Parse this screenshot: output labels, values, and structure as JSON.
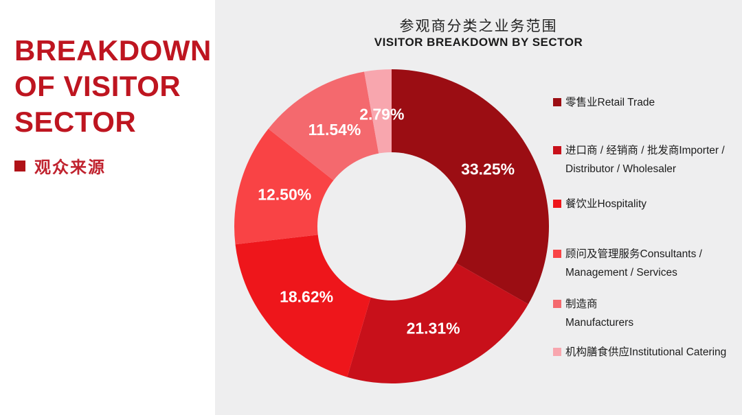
{
  "left_panel": {
    "title_lines": [
      "BREAKDOWN",
      "OF VISITOR",
      "SECTOR"
    ],
    "subtitle": "观众来源"
  },
  "chart_header": {
    "title_zh": "参观商分类之业务范围",
    "title_en": "VISITOR BREAKDOWN BY SECTOR"
  },
  "chart_data": {
    "type": "pie",
    "donut": true,
    "title": "参观商分类之业务范围 / VISITOR BREAKDOWN BY SECTOR",
    "start_angle_deg": 0,
    "direction": "clockwise",
    "categories": [
      "零售业 Retail Trade",
      "进口商 / 经销商 / 批发商 Importer / Distributor / Wholesaler",
      "餐饮业 Hospitality",
      "顾问及管理服务 Consultants / Management / Services",
      "制造商 Manufacturers",
      "机构膳食供应 Institutional Catering"
    ],
    "values": [
      33.25,
      21.31,
      18.62,
      12.5,
      11.54,
      2.79
    ],
    "labels": [
      "33.25%",
      "21.31%",
      "18.62%",
      "12.50%",
      "11.54%",
      "2.79%"
    ],
    "colors": [
      "#9b0d13",
      "#c8101a",
      "#ee161b",
      "#f94345",
      "#f4696e",
      "#f8a6ae"
    ],
    "legend_position": "right"
  },
  "legend": {
    "items": [
      {
        "line1": "零售业Retail Trade"
      },
      {
        "line1": "进口商 / 经销商 / 批发商Importer /",
        "line2": "Distributor / Wholesaler"
      },
      {
        "line1": "餐饮业Hospitality"
      },
      {
        "line1": "顾问及管理服务Consultants /",
        "line2": "Management / Services"
      },
      {
        "line1": "制造商",
        "line2": "Manufacturers"
      },
      {
        "line1": "机构膳食供应Institutional Catering"
      }
    ]
  },
  "colors": {
    "heading_red": "#be1520",
    "bullet_red": "#b01218",
    "left_background": "#ffffff",
    "right_background": "#eeeeef"
  }
}
